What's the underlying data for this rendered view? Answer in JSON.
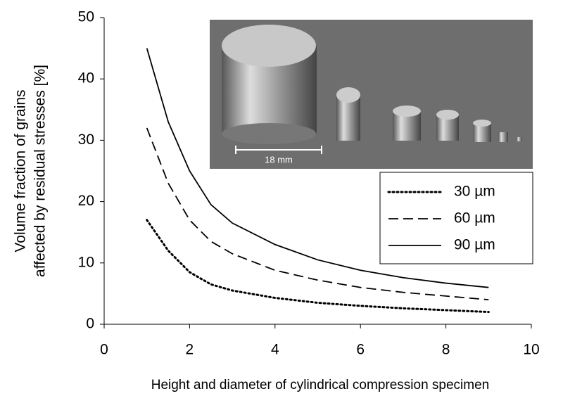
{
  "chart_data": {
    "type": "line",
    "y_label_lines": [
      "Volume fraction of grains",
      "affected by residual stresses [%]"
    ],
    "x_label": "Height and diameter of cylindrical compression specimen",
    "annotations": [
      "18 mm"
    ],
    "x": [
      1,
      1.5,
      2,
      2.5,
      3,
      4,
      5,
      6,
      7,
      8,
      9
    ],
    "series": [
      {
        "name": "30 µm",
        "color": "#000000",
        "dash": "dotted",
        "values": [
          17,
          12,
          8.5,
          6.5,
          5.5,
          4.3,
          3.5,
          3,
          2.6,
          2.3,
          2
        ]
      },
      {
        "name": "60 µm",
        "color": "#000000",
        "dash": "dashed",
        "values": [
          32,
          23,
          17,
          13.5,
          11.5,
          8.8,
          7.2,
          6,
          5.2,
          4.6,
          4
        ]
      },
      {
        "name": "90 µm",
        "color": "#000000",
        "dash": "solid",
        "values": [
          45,
          33,
          25,
          19.5,
          16.5,
          13,
          10.5,
          8.8,
          7.6,
          6.7,
          6
        ]
      }
    ],
    "xlim": [
      0,
      10
    ],
    "xticks": [
      0,
      2,
      4,
      6,
      8,
      10
    ],
    "ylim": [
      0,
      50
    ],
    "yticks": [
      0,
      10,
      20,
      30,
      40,
      50
    ],
    "legend": "right"
  }
}
